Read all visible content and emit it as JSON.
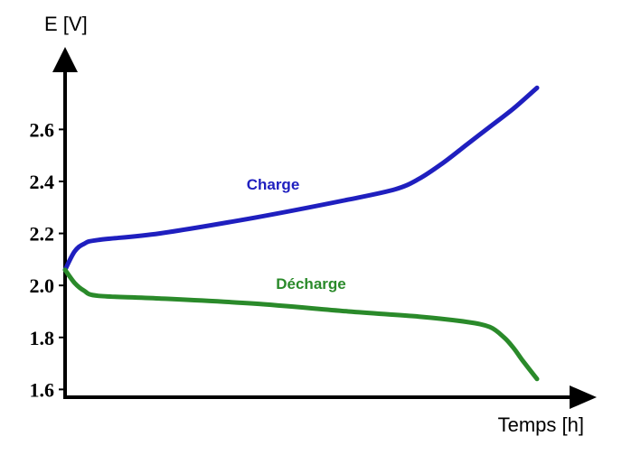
{
  "chart_data": {
    "type": "line",
    "title": "",
    "xlabel": "Temps [h]",
    "ylabel": "E [V]",
    "ylim": [
      1.57,
      2.82
    ],
    "y_ticks": [
      {
        "value": 1.6,
        "label": "1.6"
      },
      {
        "value": 1.8,
        "label": "1.8"
      },
      {
        "value": 2.0,
        "label": "2.0"
      },
      {
        "value": 2.2,
        "label": "2.2"
      },
      {
        "value": 2.4,
        "label": "2.4"
      },
      {
        "value": 2.6,
        "label": "2.6"
      }
    ],
    "x_ticks": [],
    "grid": false,
    "series": [
      {
        "name": "Charge",
        "color": "#1f1fbf",
        "x": [
          0,
          2,
          4,
          7,
          20,
          40,
          60,
          70,
          75,
          80,
          85,
          90,
          95,
          100
        ],
        "y": [
          2.06,
          2.13,
          2.16,
          2.175,
          2.2,
          2.26,
          2.33,
          2.37,
          2.41,
          2.47,
          2.54,
          2.61,
          2.68,
          2.76
        ]
      },
      {
        "name": "Décharge",
        "color": "#2a8a2a",
        "x": [
          0,
          2,
          4,
          7,
          20,
          40,
          60,
          75,
          85,
          90,
          93,
          95,
          97,
          100
        ],
        "y": [
          2.06,
          2.01,
          1.98,
          1.96,
          1.95,
          1.93,
          1.9,
          1.88,
          1.86,
          1.84,
          1.8,
          1.76,
          1.71,
          1.64
        ]
      }
    ]
  }
}
